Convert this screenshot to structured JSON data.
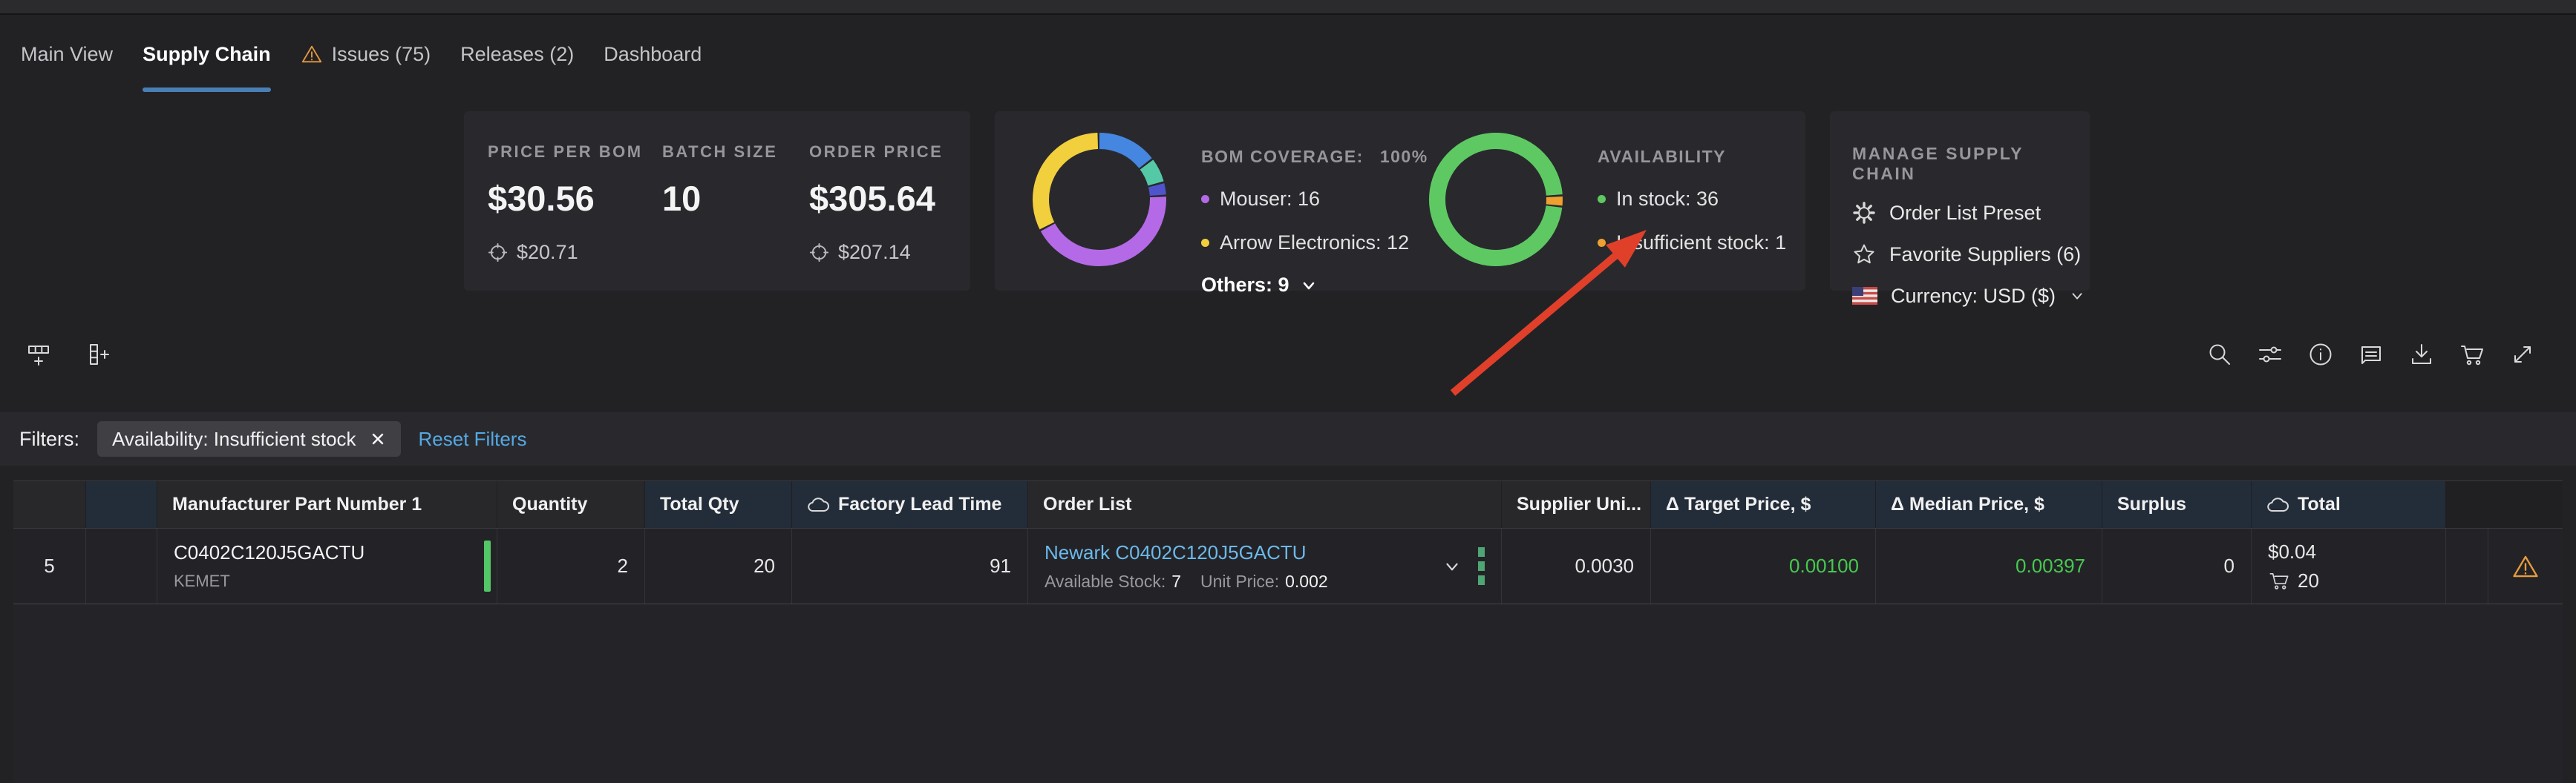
{
  "nav": {
    "tabs": [
      {
        "label": "Main View"
      },
      {
        "label": "Supply Chain"
      },
      {
        "label": "Issues (75)"
      },
      {
        "label": "Releases (2)"
      },
      {
        "label": "Dashboard"
      }
    ]
  },
  "summary": {
    "price_per_bom": {
      "label": "PRICE PER BOM",
      "value": "$30.56",
      "target": "$20.71"
    },
    "batch_size": {
      "label": "BATCH SIZE",
      "value": "10"
    },
    "order_price": {
      "label": "ORDER PRICE",
      "value": "$305.64",
      "target": "$207.14"
    },
    "bom_coverage": {
      "title": "BOM COVERAGE:",
      "coverage_value": "100%",
      "legend": [
        {
          "label": "Mouser: 16",
          "color": "#b46ae6"
        },
        {
          "label": "Arrow Electronics: 12",
          "color": "#f2cf3d"
        }
      ],
      "others_label": "Others: 9"
    },
    "availability": {
      "title": "AVAILABILITY",
      "legend": [
        {
          "label": "In stock: 36",
          "color": "#5ec963"
        },
        {
          "label": "Insufficient stock: 1",
          "color": "#f0a030"
        }
      ]
    },
    "manage": {
      "title": "MANAGE SUPPLY CHAIN",
      "items": [
        {
          "label": "Order List Preset"
        },
        {
          "label": "Favorite Suppliers (6)"
        },
        {
          "label": "Currency: USD ($)"
        }
      ]
    }
  },
  "filters": {
    "label": "Filters:",
    "chip": "Availability: Insufficient stock",
    "reset": "Reset Filters"
  },
  "table": {
    "headers": {
      "mpn": "Manufacturer Part Number 1",
      "qty": "Quantity",
      "tqty": "Total Qty",
      "flt": "Factory Lead Time",
      "order": "Order List",
      "sup": "Supplier Uni...",
      "target": "Δ Target Price, $",
      "median": "Δ Median Price, $",
      "surplus": "Surplus",
      "total": "Total"
    },
    "row": {
      "num": "5",
      "mpn": "C0402C120J5GACTU",
      "manufacturer": "KEMET",
      "quantity": "2",
      "total_qty": "20",
      "lead_time": "91",
      "order_link": "Newark C0402C120J5GACTU",
      "available_stock_label": "Available Stock:",
      "available_stock_value": "7",
      "unit_price_label": "Unit Price:",
      "unit_price_value": "0.002",
      "supplier_unit_price": "0.0030",
      "target_price": "0.00100",
      "median_price": "0.00397",
      "surplus": "0",
      "total_price": "$0.04",
      "cart_qty": "20"
    }
  },
  "colors": {
    "accent_blue": "#4a7fb5",
    "link_blue": "#6cb9ea",
    "reset_blue": "#55a9e4",
    "green_value": "#47c94f",
    "stock_bar_green": "#53c667",
    "warning_orange": "#e89a3c",
    "arrow_red": "#e0402a"
  },
  "chart_data": [
    {
      "type": "pie",
      "title": "BOM COVERAGE: 100%",
      "legend_position": "right",
      "rotation_deg": 0,
      "segments": [
        {
          "label": "Others (part 1)",
          "value": 5.5,
          "color": "#4486e0"
        },
        {
          "label": "Others (part 2)",
          "value": 2.3,
          "color": "#55c9a6"
        },
        {
          "label": "Others (part 3)",
          "value": 1.2,
          "color": "#5054cc"
        },
        {
          "label": "Mouser",
          "value": 16,
          "color": "#b46ae6"
        },
        {
          "label": "Arrow Electronics",
          "value": 12,
          "color": "#f2cf3d"
        }
      ]
    },
    {
      "type": "pie",
      "title": "AVAILABILITY",
      "legend_position": "right",
      "rotation_deg": 97,
      "segments": [
        {
          "label": "In stock",
          "value": 36,
          "color": "#5ec963"
        },
        {
          "label": "Insufficient stock",
          "value": 1,
          "color": "#f0a030"
        }
      ]
    }
  ]
}
